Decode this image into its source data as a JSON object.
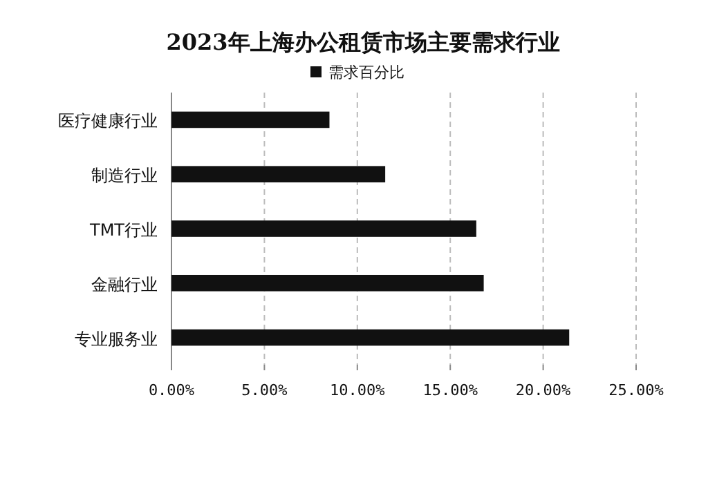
{
  "chart_data": {
    "type": "bar",
    "orientation": "horizontal",
    "title": "2023年上海办公租赁市场主要需求行业",
    "categories": [
      "医疗健康行业",
      "制造行业",
      "TMT行业",
      "金融行业",
      "专业服务业"
    ],
    "series": [
      {
        "name": "需求百分比",
        "color": "#111111",
        "values": [
          8.5,
          11.5,
          16.4,
          16.8,
          21.4
        ]
      }
    ],
    "xlim": [
      0,
      25
    ],
    "xticks": [
      {
        "value": 0,
        "label": "0.00%"
      },
      {
        "value": 5,
        "label": "5.00%"
      },
      {
        "value": 10,
        "label": "10.00%"
      },
      {
        "value": 15,
        "label": "15.00%"
      },
      {
        "value": 20,
        "label": "20.00%"
      },
      {
        "value": 25,
        "label": "25.00%"
      }
    ],
    "grid": "x",
    "legend": "top"
  }
}
